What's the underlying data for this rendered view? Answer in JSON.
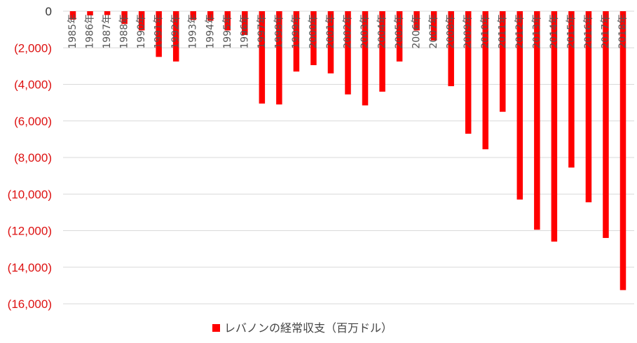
{
  "chart_data": {
    "type": "bar",
    "title": "",
    "xlabel": "",
    "ylabel": "",
    "ylim": [
      -16000,
      0
    ],
    "yticks": [
      0,
      -2000,
      -4000,
      -6000,
      -8000,
      -10000,
      -12000,
      -14000,
      -16000
    ],
    "ytick_labels": [
      "0",
      "(2,000)",
      "(4,000)",
      "(6,000)",
      "(8,000)",
      "(10,000)",
      "(12,000)",
      "(14,000)",
      "(16,000)"
    ],
    "grid": true,
    "legend_position": "bottom",
    "categories": [
      "1985年",
      "1986年",
      "1987年",
      "1988年",
      "1990年",
      "1991年",
      "1992年",
      "1993年",
      "1994年",
      "1995年",
      "1996年",
      "1997年",
      "1998年",
      "1999年",
      "2000年",
      "2001年",
      "2002年",
      "2003年",
      "2004年",
      "2005年",
      "2006年",
      "2007年",
      "2008年",
      "2009年",
      "2010年",
      "2011年",
      "2012年",
      "2013年",
      "2014年",
      "2015年",
      "2016年",
      "2017年",
      "2018年"
    ],
    "series": [
      {
        "name": "レバノンの経常収支（百万ドル）",
        "color": "#ff0000",
        "values": [
          -460,
          -230,
          -210,
          -700,
          -1050,
          -2500,
          -2750,
          -480,
          -520,
          -1050,
          -1300,
          -5050,
          -5100,
          -3300,
          -2950,
          -3400,
          -4550,
          -5150,
          -4400,
          -2750,
          -1050,
          -1600,
          -4100,
          -6700,
          -7550,
          -5500,
          -10300,
          -11950,
          -12600,
          -8550,
          -10450,
          -12400,
          -15250
        ]
      }
    ]
  }
}
